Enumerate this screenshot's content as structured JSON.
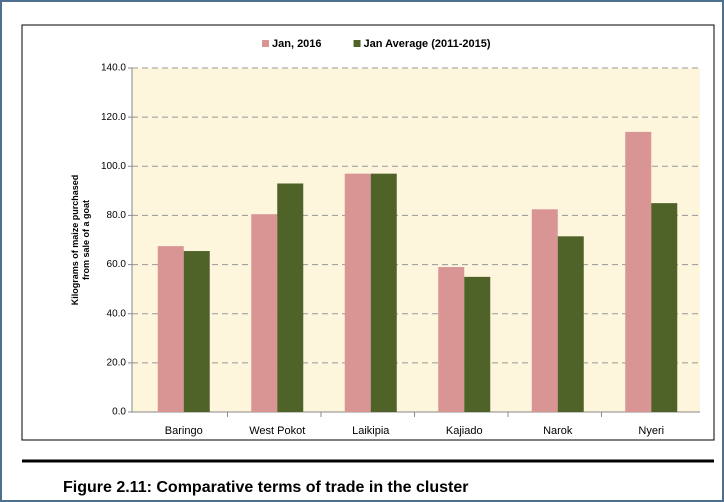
{
  "caption": "Figure 2.11:   Comparative terms of trade in the cluster",
  "chart_data": {
    "type": "bar",
    "ylabel": [
      "Kilograms of maize purchased",
      "from sale of a goat"
    ],
    "categories": [
      "Baringo",
      "West Pokot",
      "Laikipia",
      "Kajiado",
      "Narok",
      "Nyeri"
    ],
    "series": [
      {
        "name": "Jan, 2016",
        "color": "#d99594",
        "values": [
          67.5,
          80.5,
          97,
          59,
          82.5,
          114
        ]
      },
      {
        "name": "Jan Average (2011-2015)",
        "color": "#4f6228",
        "values": [
          65.5,
          93,
          97,
          55,
          71.5,
          85
        ]
      }
    ],
    "ylim": [
      0,
      140
    ],
    "yticks": [
      {
        "value": 0,
        "label": "0.0"
      },
      {
        "value": 20,
        "label": "20.0"
      },
      {
        "value": 40,
        "label": "40.0"
      },
      {
        "value": 60,
        "label": "60.0"
      },
      {
        "value": 80,
        "label": "80.0"
      },
      {
        "value": 100,
        "label": "100.0"
      },
      {
        "value": 120,
        "label": "120.0"
      },
      {
        "value": 140,
        "label": "140.0"
      }
    ],
    "grid": true,
    "legend": "top"
  }
}
